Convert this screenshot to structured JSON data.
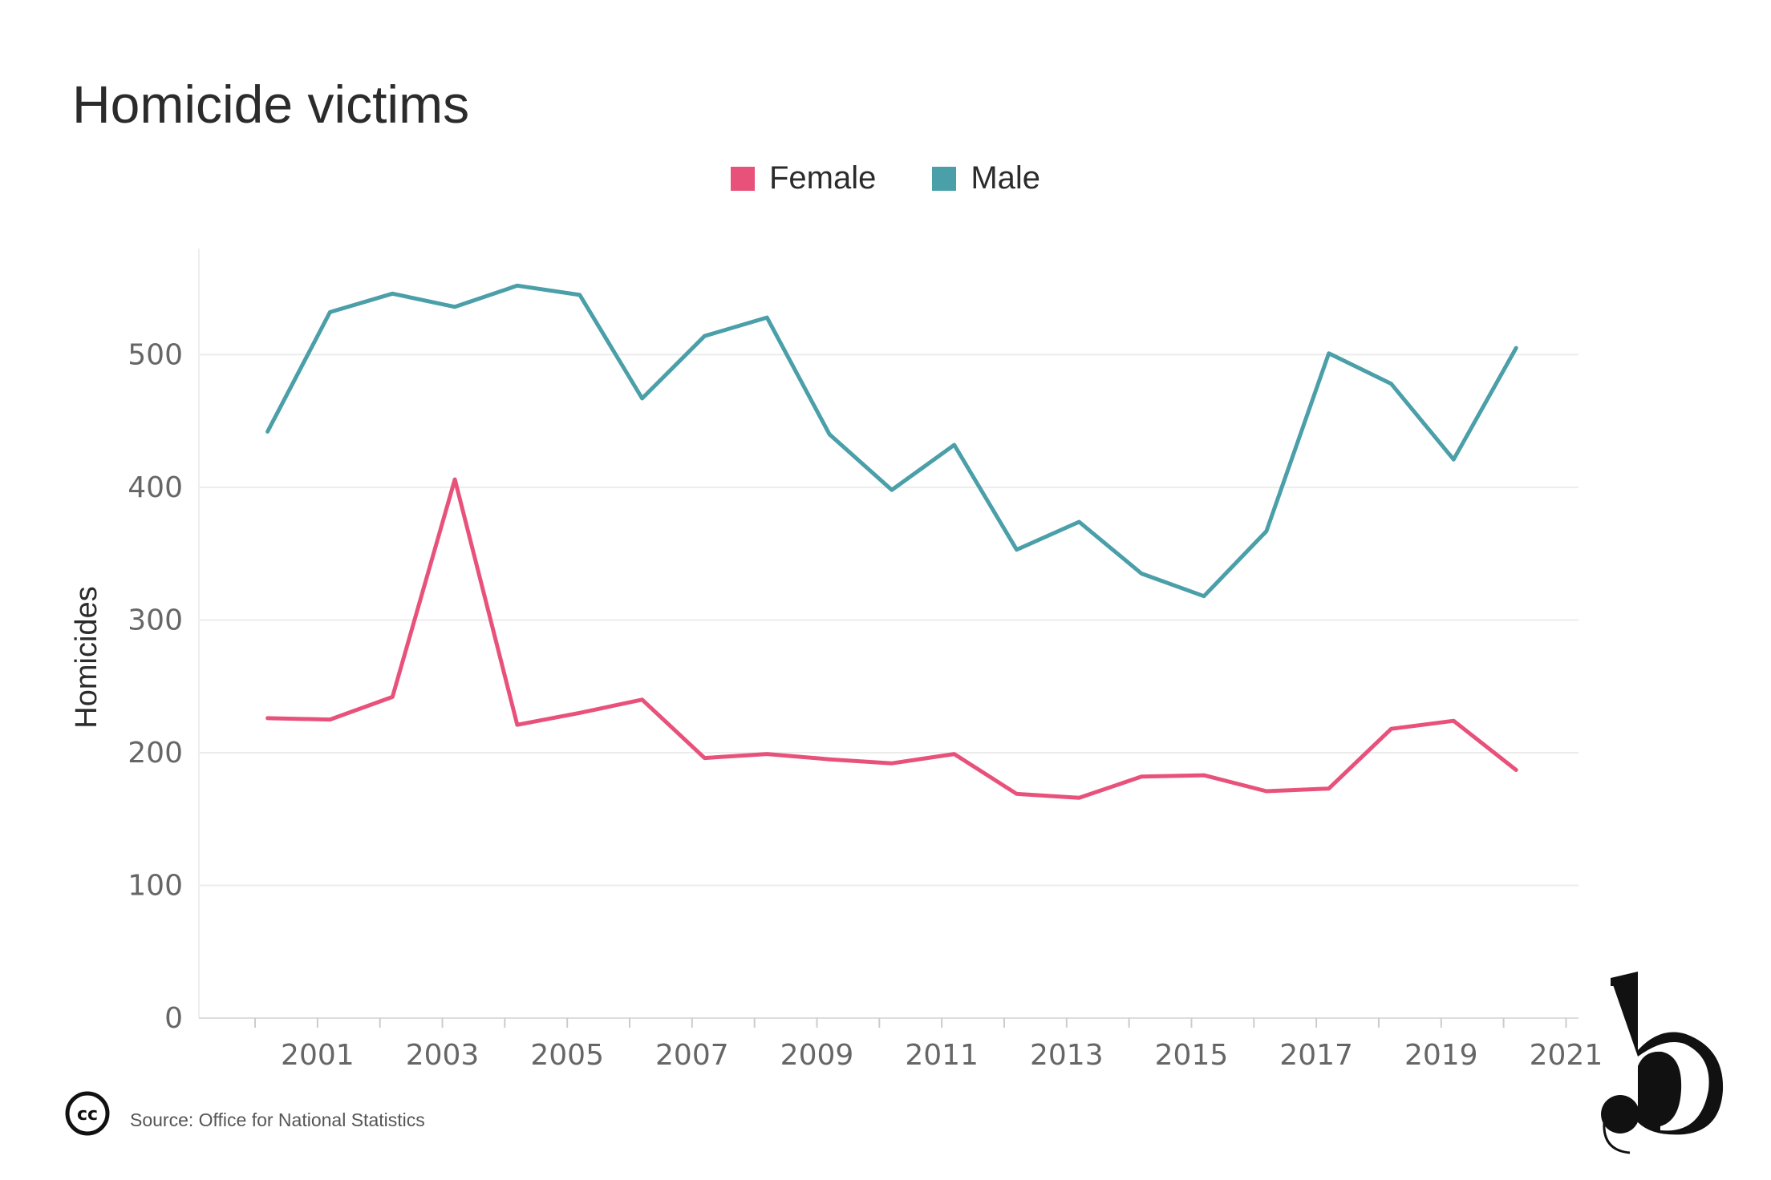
{
  "title": "Homicide victims",
  "legend": [
    {
      "label": "Female",
      "color": "#e8527a"
    },
    {
      "label": "Male",
      "color": "#4a9fa8"
    }
  ],
  "source": "Source: Office for National Statistics",
  "cc_label": "cc",
  "chart_data": {
    "type": "line",
    "title": "Homicide victims",
    "xlabel": "",
    "ylabel": "Homicides",
    "ylim": [
      0,
      580
    ],
    "xlim": [
      1999.1,
      2021.2
    ],
    "y_ticks": [
      0,
      100,
      200,
      300,
      400,
      500
    ],
    "x_ticks": [
      2001,
      2003,
      2005,
      2007,
      2009,
      2011,
      2013,
      2015,
      2017,
      2019,
      2021
    ],
    "grid": true,
    "legend_position": "top-center",
    "x": [
      2000.2,
      2001.2,
      2002.2,
      2003.2,
      2004.2,
      2005.2,
      2006.2,
      2007.2,
      2008.2,
      2009.2,
      2010.2,
      2011.2,
      2012.2,
      2013.2,
      2014.2,
      2015.2,
      2016.2,
      2017.2,
      2018.2,
      2019.2,
      2020.2
    ],
    "series": [
      {
        "name": "Female",
        "color": "#e8527a",
        "values": [
          226,
          225,
          242,
          406,
          221,
          230,
          240,
          196,
          199,
          195,
          192,
          199,
          169,
          166,
          182,
          183,
          171,
          173,
          218,
          224,
          187
        ]
      },
      {
        "name": "Male",
        "color": "#4a9fa8",
        "values": [
          442,
          532,
          546,
          536,
          552,
          545,
          467,
          514,
          528,
          440,
          398,
          432,
          353,
          374,
          335,
          318,
          367,
          501,
          478,
          421,
          505
        ]
      }
    ]
  }
}
